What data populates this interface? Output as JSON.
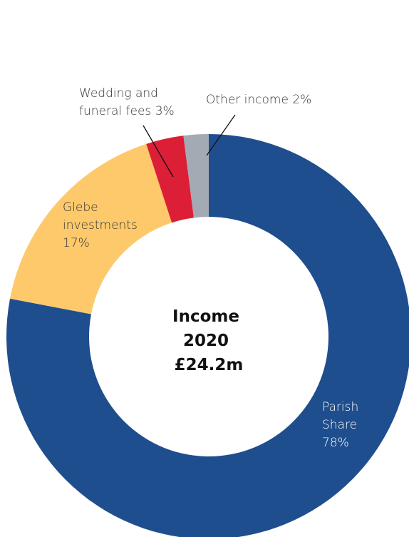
{
  "chart_data": {
    "type": "pie",
    "style": "donut",
    "center_label": [
      "Income",
      "2020",
      "£24.2m"
    ],
    "slices": [
      {
        "name": "Parish Share",
        "value": 78,
        "color": "#1f4e8e",
        "label_lines": [
          "Parish",
          "Share",
          "78%"
        ],
        "label_color": "#ffffff"
      },
      {
        "name": "Glebe investments",
        "value": 17,
        "color": "#fdc96b",
        "label_lines": [
          "Glebe",
          "investments",
          "17%"
        ],
        "label_color": "#333333"
      },
      {
        "name": "Wedding and funeral fees",
        "value": 3,
        "color": "#dc1e36",
        "label_lines": [
          "Wedding and",
          "funeral fees 3%"
        ],
        "label_color": "#333333"
      },
      {
        "name": "Other income",
        "value": 2,
        "color": "#a4aab4",
        "label_lines": [
          "Other income 2%"
        ],
        "label_color": "#333333"
      }
    ]
  }
}
